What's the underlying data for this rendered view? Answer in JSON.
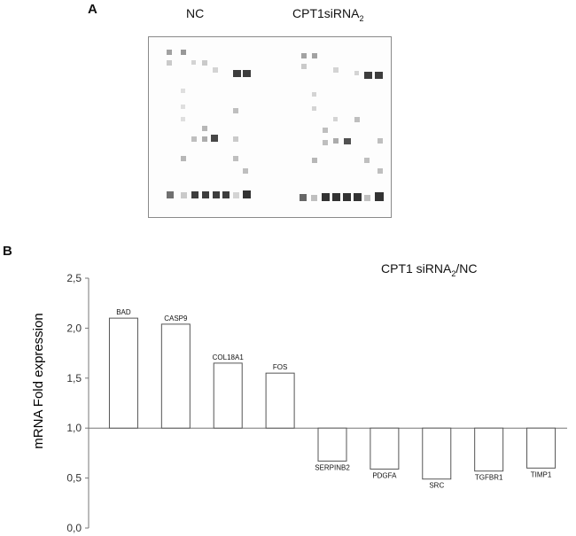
{
  "panel_a": {
    "letter": "A",
    "label_nc": "NC",
    "label_cpt_main": "CPT1siRNA",
    "label_cpt_sub": "2"
  },
  "panel_b": {
    "letter": "B"
  },
  "chart_data": {
    "type": "bar",
    "title": "CPT1 siRNA2/NC",
    "title_main": "CPT1 siRNA",
    "title_sub": "2",
    "title_tail": "/NC",
    "ylabel": "mRNA Fold expression",
    "xlabel": "",
    "baseline": 1.0,
    "ylim": [
      0,
      2.5
    ],
    "yticks": [
      "0,0",
      "0,5",
      "1,0",
      "1,5",
      "2,0",
      "2,5"
    ],
    "categories": [
      "BAD",
      "CASP9",
      "COL18A1",
      "FOS",
      "SERPINB2",
      "PDGFA",
      "SRC",
      "TGFBR1",
      "TIMP1"
    ],
    "values": [
      2.1,
      2.04,
      1.65,
      1.55,
      0.67,
      0.59,
      0.49,
      0.57,
      0.6
    ],
    "grid": false,
    "bar_fill": "#ffffff",
    "bar_stroke": "#555555"
  }
}
